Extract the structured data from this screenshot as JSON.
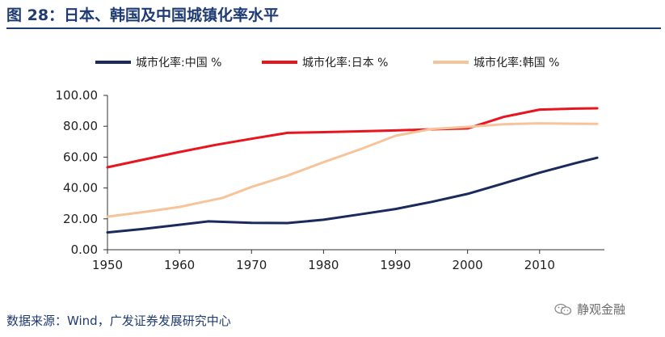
{
  "header": {
    "title": "图 28：日本、韩国及中国城镇化率水平"
  },
  "footer": {
    "source": "数据来源：Wind，广发证券发展研究中心",
    "watermark": "静观金融"
  },
  "icons": {
    "watermark_icon": "wechat-icon"
  },
  "chart_data": {
    "type": "line",
    "title": "",
    "xlabel": "",
    "ylabel": "",
    "xlim": [
      1950,
      2019
    ],
    "ylim": [
      0,
      100
    ],
    "xticks": [
      1950,
      1960,
      1970,
      1980,
      1990,
      2000,
      2010
    ],
    "xtick_labels": [
      "1950",
      "1960",
      "1970",
      "1980",
      "1990",
      "2000",
      "2010"
    ],
    "yticks": [
      0,
      20,
      40,
      60,
      80,
      100
    ],
    "ytick_labels": [
      "0.00",
      "20.00",
      "40.00",
      "60.00",
      "80.00",
      "100.00"
    ],
    "grid": false,
    "legend_position": "top",
    "series": [
      {
        "name": "城市化率:中国 %",
        "color": "#1a2a5c",
        "x": [
          1950,
          1955,
          1960,
          1964,
          1970,
          1975,
          1980,
          1985,
          1990,
          1995,
          2000,
          2005,
          2010,
          2015,
          2018
        ],
        "y": [
          11.2,
          13.5,
          16.2,
          18.4,
          17.4,
          17.3,
          19.4,
          22.9,
          26.4,
          31.0,
          36.2,
          43.0,
          49.9,
          56.1,
          59.6
        ]
      },
      {
        "name": "城市化率:日本 %",
        "color": "#e8141e",
        "x": [
          1950,
          1955,
          1960,
          1965,
          1970,
          1975,
          1980,
          1985,
          1990,
          1995,
          2000,
          2005,
          2010,
          2015,
          2018
        ],
        "y": [
          53.4,
          58.4,
          63.3,
          67.9,
          71.9,
          75.7,
          76.2,
          76.7,
          77.3,
          78.0,
          78.6,
          86.0,
          90.8,
          91.4,
          91.6
        ]
      },
      {
        "name": "城市化率:韩国 %",
        "color": "#f6c49b",
        "x": [
          1950,
          1955,
          1960,
          1966,
          1970,
          1975,
          1980,
          1985,
          1990,
          1995,
          2000,
          2005,
          2010,
          2015,
          2018
        ],
        "y": [
          21.4,
          24.4,
          27.7,
          33.6,
          40.7,
          48.0,
          56.7,
          64.9,
          73.8,
          78.2,
          79.6,
          81.3,
          81.9,
          81.6,
          81.5
        ]
      }
    ]
  }
}
